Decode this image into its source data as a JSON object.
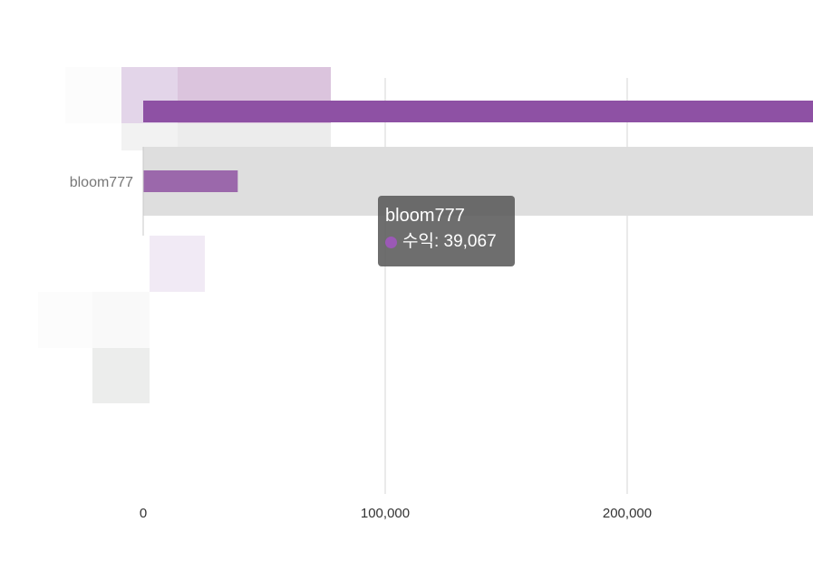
{
  "chart_data": {
    "type": "bar",
    "orientation": "horizontal",
    "categories": [
      "",
      "bloom777"
    ],
    "series": [
      {
        "name": "수익",
        "values": [
          277000,
          39067
        ]
      }
    ],
    "x_ticks": [
      0,
      100000,
      200000
    ],
    "x_tick_labels": [
      "0",
      "100,000",
      "200,000"
    ],
    "xlim": [
      0,
      277000
    ],
    "grid": true,
    "highlighted_category": "bloom777"
  },
  "tooltip": {
    "title": "bloom777",
    "series_label": "수익",
    "value_text": "39,067",
    "line": "수익: 39,067"
  },
  "colors": {
    "bar": "#8e51a4",
    "bar_highlight": "#9b68ab",
    "hover_band": "#dedede",
    "grid": "#d6d6d6",
    "tooltip_bg": "#5a5a5a",
    "tooltip_dot": "#9b59b6"
  }
}
